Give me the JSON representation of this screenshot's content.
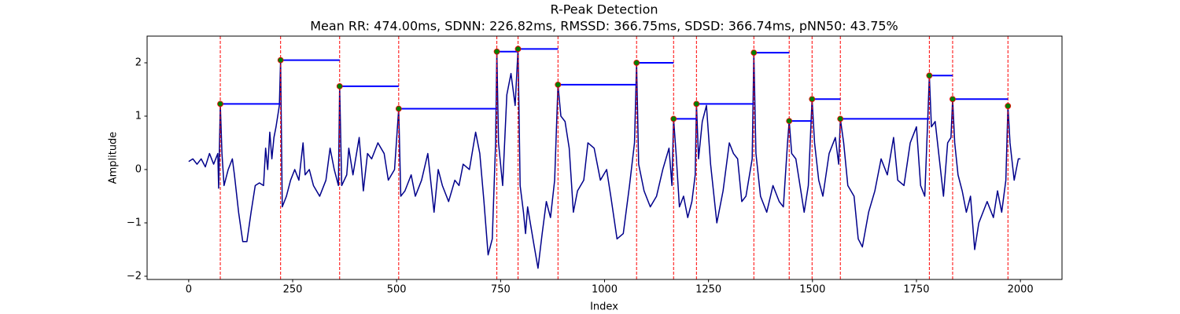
{
  "chart_data": {
    "type": "line",
    "title": "R-Peak Detection",
    "subtitle": "Mean RR: 474.00ms, SDNN: 226.82ms, RMSSD: 366.75ms, SDSD: 366.74ms, pNN50: 43.75%",
    "x_label": "Index",
    "y_label": "Amplitude",
    "xlim": [
      -100,
      2100
    ],
    "ylim": [
      -2.06,
      2.5
    ],
    "xticks": [
      0,
      250,
      500,
      750,
      1000,
      1250,
      1500,
      1750,
      2000
    ],
    "yticks": [
      {
        "value": -2,
        "label": "−2"
      },
      {
        "value": -1,
        "label": "−1"
      },
      0,
      1,
      2
    ],
    "signal": {
      "color": "#00008b",
      "x": [
        0,
        10,
        20,
        30,
        40,
        50,
        60,
        70,
        72,
        76,
        80,
        85,
        95,
        105,
        110,
        120,
        130,
        140,
        150,
        160,
        170,
        180,
        185,
        190,
        195,
        200,
        205,
        210,
        218,
        221,
        225,
        235,
        245,
        255,
        265,
        275,
        280,
        290,
        300,
        315,
        330,
        340,
        350,
        360,
        363,
        368,
        380,
        385,
        395,
        410,
        420,
        430,
        440,
        455,
        470,
        480,
        495,
        505,
        510,
        520,
        535,
        545,
        560,
        575,
        590,
        600,
        610,
        625,
        640,
        650,
        660,
        675,
        690,
        700,
        710,
        720,
        730,
        738,
        741,
        745,
        755,
        765,
        775,
        785,
        792,
        797,
        805,
        810,
        815,
        830,
        840,
        850,
        860,
        870,
        880,
        888,
        895,
        905,
        915,
        925,
        935,
        950,
        960,
        975,
        990,
        1005,
        1015,
        1030,
        1045,
        1060,
        1072,
        1077,
        1082,
        1095,
        1110,
        1125,
        1140,
        1155,
        1162,
        1166,
        1172,
        1180,
        1190,
        1200,
        1210,
        1218,
        1221,
        1226,
        1235,
        1245,
        1255,
        1270,
        1285,
        1300,
        1310,
        1320,
        1330,
        1340,
        1355,
        1359,
        1364,
        1375,
        1390,
        1405,
        1420,
        1430,
        1440,
        1444,
        1450,
        1460,
        1470,
        1480,
        1490,
        1499,
        1505,
        1515,
        1525,
        1540,
        1555,
        1563,
        1567,
        1575,
        1585,
        1600,
        1610,
        1620,
        1635,
        1650,
        1665,
        1680,
        1695,
        1705,
        1720,
        1735,
        1750,
        1760,
        1770,
        1777,
        1781,
        1786,
        1795,
        1805,
        1815,
        1825,
        1833,
        1837,
        1842,
        1850,
        1860,
        1870,
        1880,
        1890,
        1900,
        1910,
        1920,
        1935,
        1945,
        1955,
        1965,
        1970,
        1975,
        1985,
        1995,
        2000
      ],
      "values": [
        0.15,
        0.2,
        0.1,
        0.2,
        0.05,
        0.3,
        0.1,
        0.3,
        -0.35,
        1.23,
        0.3,
        -0.3,
        0.0,
        0.2,
        -0.1,
        -0.8,
        -1.35,
        -1.35,
        -0.8,
        -0.3,
        -0.25,
        -0.3,
        0.4,
        0.0,
        0.7,
        0.2,
        0.6,
        0.8,
        1.2,
        2.05,
        -0.7,
        -0.5,
        -0.2,
        0.0,
        -0.2,
        0.5,
        -0.1,
        0.0,
        -0.3,
        -0.5,
        -0.2,
        0.4,
        0.0,
        -0.3,
        1.56,
        -0.3,
        -0.1,
        0.4,
        -0.1,
        0.6,
        -0.4,
        0.3,
        0.2,
        0.5,
        0.3,
        -0.2,
        0.0,
        1.14,
        -0.5,
        -0.4,
        -0.1,
        -0.5,
        -0.2,
        0.3,
        -0.8,
        0.0,
        -0.3,
        -0.6,
        -0.2,
        -0.3,
        0.1,
        0.0,
        0.7,
        0.3,
        -0.6,
        -1.6,
        -1.3,
        0.5,
        2.21,
        0.5,
        -0.3,
        1.4,
        1.8,
        1.2,
        2.26,
        -0.3,
        -0.8,
        -1.2,
        -0.7,
        -1.4,
        -1.85,
        -1.2,
        -0.6,
        -0.9,
        -0.2,
        1.59,
        1.0,
        0.9,
        0.4,
        -0.8,
        -0.4,
        -0.2,
        0.5,
        0.4,
        -0.2,
        0.0,
        -0.5,
        -1.3,
        -1.2,
        -0.3,
        0.5,
        2.0,
        0.1,
        -0.4,
        -0.7,
        -0.5,
        0.0,
        0.4,
        -0.3,
        0.95,
        0.3,
        -0.7,
        -0.5,
        -0.9,
        -0.6,
        -0.1,
        1.23,
        0.2,
        0.9,
        1.2,
        0.1,
        -1.0,
        -0.4,
        0.5,
        0.3,
        0.2,
        -0.6,
        -0.5,
        0.2,
        2.19,
        0.3,
        -0.5,
        -0.8,
        -0.3,
        -0.6,
        -0.7,
        0.5,
        0.91,
        0.3,
        0.2,
        -0.3,
        -0.8,
        -0.3,
        1.32,
        0.5,
        -0.2,
        -0.5,
        0.3,
        0.6,
        0.1,
        0.95,
        0.5,
        -0.3,
        -0.5,
        -1.3,
        -1.45,
        -0.8,
        -0.4,
        0.2,
        -0.1,
        0.6,
        -0.2,
        -0.3,
        0.5,
        0.8,
        -0.3,
        -0.5,
        0.9,
        1.76,
        0.8,
        0.9,
        0.2,
        -0.5,
        0.5,
        0.6,
        1.32,
        0.5,
        -0.1,
        -0.4,
        -0.8,
        -0.5,
        -1.5,
        -1.0,
        -0.8,
        -0.6,
        -0.9,
        -0.4,
        -0.8,
        -0.2,
        1.19,
        0.5,
        -0.2,
        0.2,
        0.2
      ]
    },
    "peaks": {
      "color": "#008000",
      "edge_color": "#ff0000",
      "marker_line_color": "#ff0000",
      "interval_color": "#0000ff",
      "x": [
        76,
        221,
        363,
        505,
        741,
        792,
        888,
        1077,
        1166,
        1221,
        1359,
        1444,
        1499,
        1567,
        1781,
        1837,
        1970
      ],
      "values": [
        1.23,
        2.05,
        1.56,
        1.14,
        2.21,
        2.26,
        1.59,
        2.0,
        0.95,
        1.23,
        2.19,
        0.91,
        1.32,
        0.95,
        1.76,
        1.32,
        1.19
      ]
    }
  }
}
